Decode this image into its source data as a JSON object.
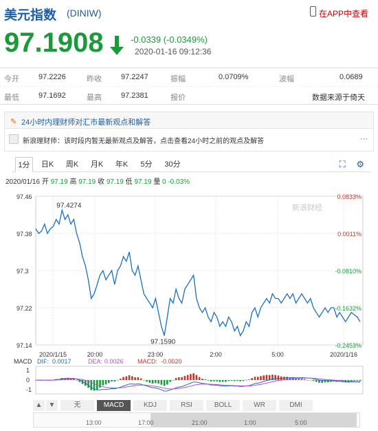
{
  "header": {
    "title": "美元指数",
    "code": "(DINIW)",
    "app_link": "在APP中查看"
  },
  "quote_main": {
    "price": "97.1908",
    "change": "-0.0339 (-0.0349%)",
    "time": "2020-01-16 09:12:36"
  },
  "stats": {
    "row1": [
      {
        "label": "今开",
        "value": "97.2226"
      },
      {
        "label": "昨收",
        "value": "97.2247"
      },
      {
        "label": "振幅",
        "value": "0.0709%"
      },
      {
        "label": "波幅",
        "value": "0.0689"
      }
    ],
    "row2": [
      {
        "label": "最低",
        "value": "97.1692"
      },
      {
        "label": "最高",
        "value": "97.2381"
      },
      {
        "label": "报价",
        "value": "数据来源于倚天"
      }
    ]
  },
  "news": {
    "headline": "24小时内理财师对汇市最新观点和解答",
    "item": "新浪理财师：该时段内暂无最新观点及解答，点击查看24小时之前的观点及解答"
  },
  "tabs": [
    "1分",
    "日K",
    "周K",
    "月K",
    "年K",
    "5分",
    "30分"
  ],
  "quote_line": {
    "date": "2020/01/16",
    "open_label": "开",
    "open": "97.19",
    "high_label": "高",
    "high": "97.19",
    "close_label": "收",
    "close": "97.19",
    "low_label": "低",
    "low": "97.19",
    "vol_label": "量",
    "vol": "0",
    "pct": "-0.03%"
  },
  "chart_data": {
    "type": "line",
    "y_ticks": [
      "97.46",
      "97.38",
      "97.3",
      "97.22",
      "97.14"
    ],
    "y_range": [
      97.14,
      97.46
    ],
    "pct_ticks": [
      "0.0833%",
      "0.0011%",
      "-0.0810%",
      "-0.1632%",
      "-0.2453%"
    ],
    "x_ticks": [
      "2020/1/15",
      "20:00",
      "23:00",
      "2:00",
      "5:00",
      "2020/1/16"
    ],
    "annotations": {
      "high": "97.4274",
      "low": "97.1590"
    },
    "watermark": "新浪财经",
    "series": [
      {
        "values": [
          97.39,
          97.38,
          97.385,
          97.4,
          97.38,
          97.39,
          97.395,
          97.41,
          97.4,
          97.43,
          97.41,
          97.42,
          97.4,
          97.41,
          97.38,
          97.36,
          97.33,
          97.31,
          97.28,
          97.24,
          97.25,
          97.27,
          97.29,
          97.3,
          97.28,
          97.29,
          97.3,
          97.27,
          97.3,
          97.31,
          97.33,
          97.32,
          97.34,
          97.3,
          97.29,
          97.31,
          97.28,
          97.25,
          97.24,
          97.23,
          97.22,
          97.24,
          97.21,
          97.18,
          97.16,
          97.2,
          97.24,
          97.23,
          97.26,
          97.24,
          97.23,
          97.26,
          97.27,
          97.28,
          97.29,
          97.24,
          97.22,
          97.21,
          97.22,
          97.2,
          97.19,
          97.21,
          97.2,
          97.18,
          97.19,
          97.18,
          97.2,
          97.19,
          97.17,
          97.18,
          97.16,
          97.17,
          97.19,
          97.18,
          97.21,
          97.22,
          97.2,
          97.22,
          97.23,
          97.24,
          97.23,
          97.25,
          97.24,
          97.24,
          97.23,
          97.24,
          97.25,
          97.24,
          97.25,
          97.23,
          97.24,
          97.25,
          97.24,
          97.23,
          97.24,
          97.22,
          97.21,
          97.2,
          97.21,
          97.22,
          97.21,
          97.22,
          97.22,
          97.2,
          97.21,
          97.2,
          97.19,
          97.2,
          97.21,
          97.205,
          97.2,
          97.19
        ]
      }
    ],
    "indicator": {
      "name": "MACD",
      "dif_label": "DIF:",
      "dif": "0.0017",
      "dea_label": "DEA:",
      "dea": "0.0026",
      "macd_label": "MACD:",
      "macd": "-0.0020",
      "y_ticks": [
        "1",
        "0",
        "-1"
      ]
    },
    "colors": {
      "line": "#1a6fbf",
      "up": "#c0392b",
      "down": "#1a9a3a",
      "dif": "#1a6fbf",
      "dea": "#b84cd6",
      "macd": "#c0392b"
    }
  },
  "indicator_tabs": [
    "▲",
    "▼",
    "无",
    "MACD",
    "KDJ",
    "RSI",
    "BOLL",
    "WR",
    "DMI"
  ],
  "navigator": {
    "labels": [
      "13:00",
      "17:00",
      "21:00",
      "1:00",
      "5:00"
    ]
  }
}
